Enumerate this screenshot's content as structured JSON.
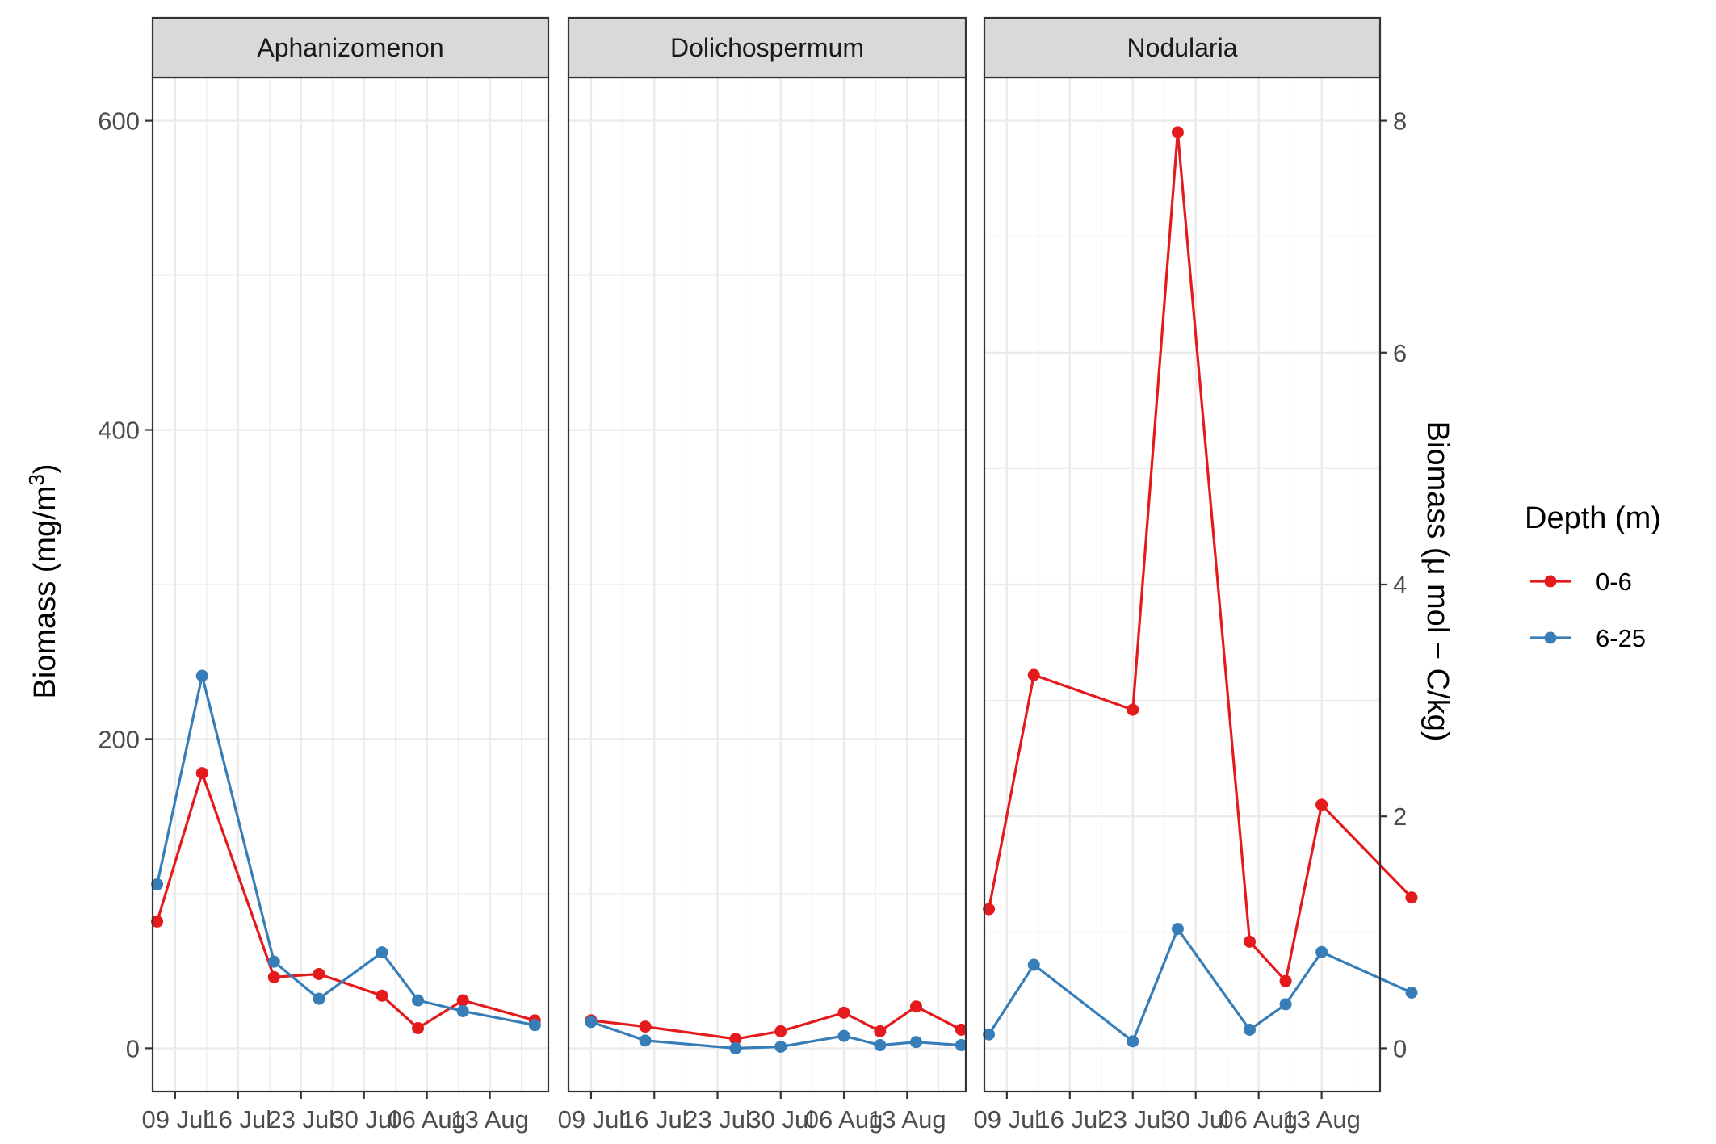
{
  "chart_data": {
    "type": "line",
    "facets": [
      "Aphanizomenon",
      "Dolichospermum",
      "Nodularia"
    ],
    "x_ticks": [
      "09 Jul",
      "16 Jul",
      "23 Jul",
      "30 Jul",
      "06 Aug",
      "13 Aug"
    ],
    "x_tick_days": [
      9,
      16,
      23,
      30,
      37,
      44
    ],
    "xlim_days": [
      6.5,
      50.5
    ],
    "ylabel_left": "Biomass (mg/m",
    "ylabel_left_sup": "3",
    "ylabel_left_close": ")",
    "ylabel_right": "Biomass (μ mol − C/kg)",
    "ylim_left": [
      -28,
      628
    ],
    "ylim_right": [
      -0.373,
      8.373
    ],
    "y_ticks_left": [
      0,
      200,
      400,
      600
    ],
    "y_ticks_right": [
      0,
      2,
      4,
      6,
      8
    ],
    "grid": true,
    "legend": {
      "title": "Depth (m)",
      "position": "right",
      "entries": [
        "0-6",
        "6-25"
      ]
    },
    "colors": {
      "0-6": "#e41a1c",
      "6-25": "#377eb8",
      "strip_bg": "#d9d9d9",
      "grid": "#ebebeb",
      "border": "#333333"
    },
    "panels": [
      {
        "facet": "Aphanizomenon",
        "series": [
          {
            "name": "0-6",
            "x": [
              7,
              12,
              20,
              25,
              32,
              36,
              41,
              49
            ],
            "y": [
              82,
              178,
              46,
              48,
              34,
              13,
              31,
              18
            ]
          },
          {
            "name": "6-25",
            "x": [
              7,
              12,
              20,
              25,
              32,
              36,
              41,
              49
            ],
            "y": [
              106,
              241,
              56,
              32,
              62,
              31,
              24,
              15
            ]
          }
        ]
      },
      {
        "facet": "Dolichospermum",
        "series": [
          {
            "name": "0-6",
            "x": [
              9,
              15,
              25,
              30,
              37,
              41,
              45,
              50
            ],
            "y": [
              18,
              14,
              6,
              11,
              23,
              11,
              27,
              12
            ]
          },
          {
            "name": "6-25",
            "x": [
              9,
              15,
              25,
              30,
              37,
              41,
              45,
              50
            ],
            "y": [
              17,
              5,
              0,
              1,
              8,
              2,
              4,
              2
            ]
          }
        ]
      },
      {
        "facet": "Nodularia",
        "series": [
          {
            "name": "0-6",
            "x": [
              7,
              12,
              23,
              28,
              36,
              40,
              44,
              54
            ],
            "y": [
              1.2,
              3.22,
              2.92,
              7.9,
              0.92,
              0.58,
              2.1,
              1.3
            ]
          },
          {
            "name": "6-25",
            "x": [
              7,
              12,
              23,
              28,
              36,
              40,
              44,
              54
            ],
            "y": [
              0.12,
              0.72,
              0.06,
              1.03,
              0.16,
              0.38,
              0.83,
              0.48
            ]
          }
        ]
      }
    ]
  }
}
